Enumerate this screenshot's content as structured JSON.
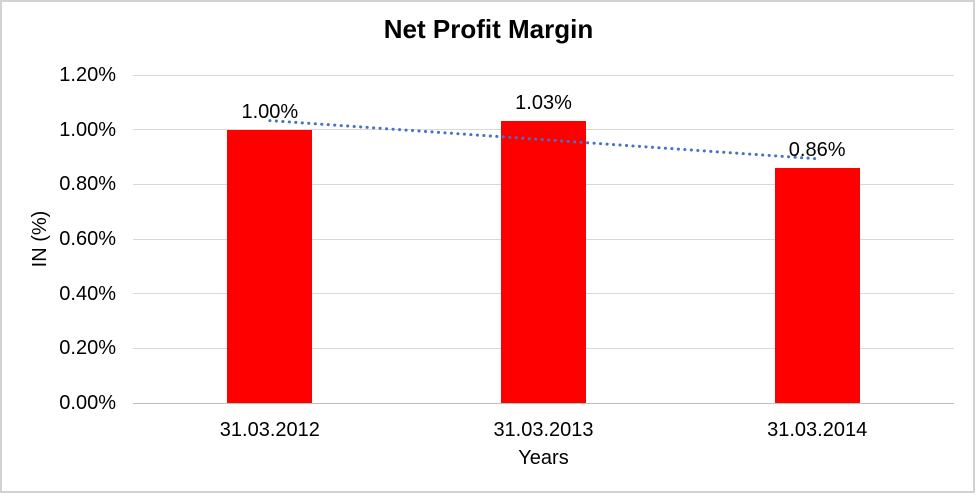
{
  "chart_data": {
    "type": "bar",
    "title": "Net Profit Margin",
    "xlabel": "Years",
    "ylabel": "IN (%)",
    "categories": [
      "31.03.2012",
      "31.03.2013",
      "31.03.2014"
    ],
    "values": [
      1.0,
      1.03,
      0.86
    ],
    "data_labels": [
      "1.00%",
      "1.03%",
      "0.86%"
    ],
    "unit": "%",
    "ylim": [
      0,
      1.2
    ],
    "ytick_step": 0.2,
    "yticks": [
      "0.00%",
      "0.20%",
      "0.40%",
      "0.60%",
      "0.80%",
      "1.00%",
      "1.20%"
    ],
    "grid": "horizontal",
    "legend": "none",
    "trendline": {
      "type": "linear",
      "style": "dotted",
      "color": "#4472c4"
    },
    "colors": {
      "bar": "#ff0000",
      "gridline": "#d9d9d9",
      "axis_line": "#bfbfbf",
      "text": "#000000",
      "background": "#ffffff",
      "border": "#d2d2d2"
    }
  }
}
